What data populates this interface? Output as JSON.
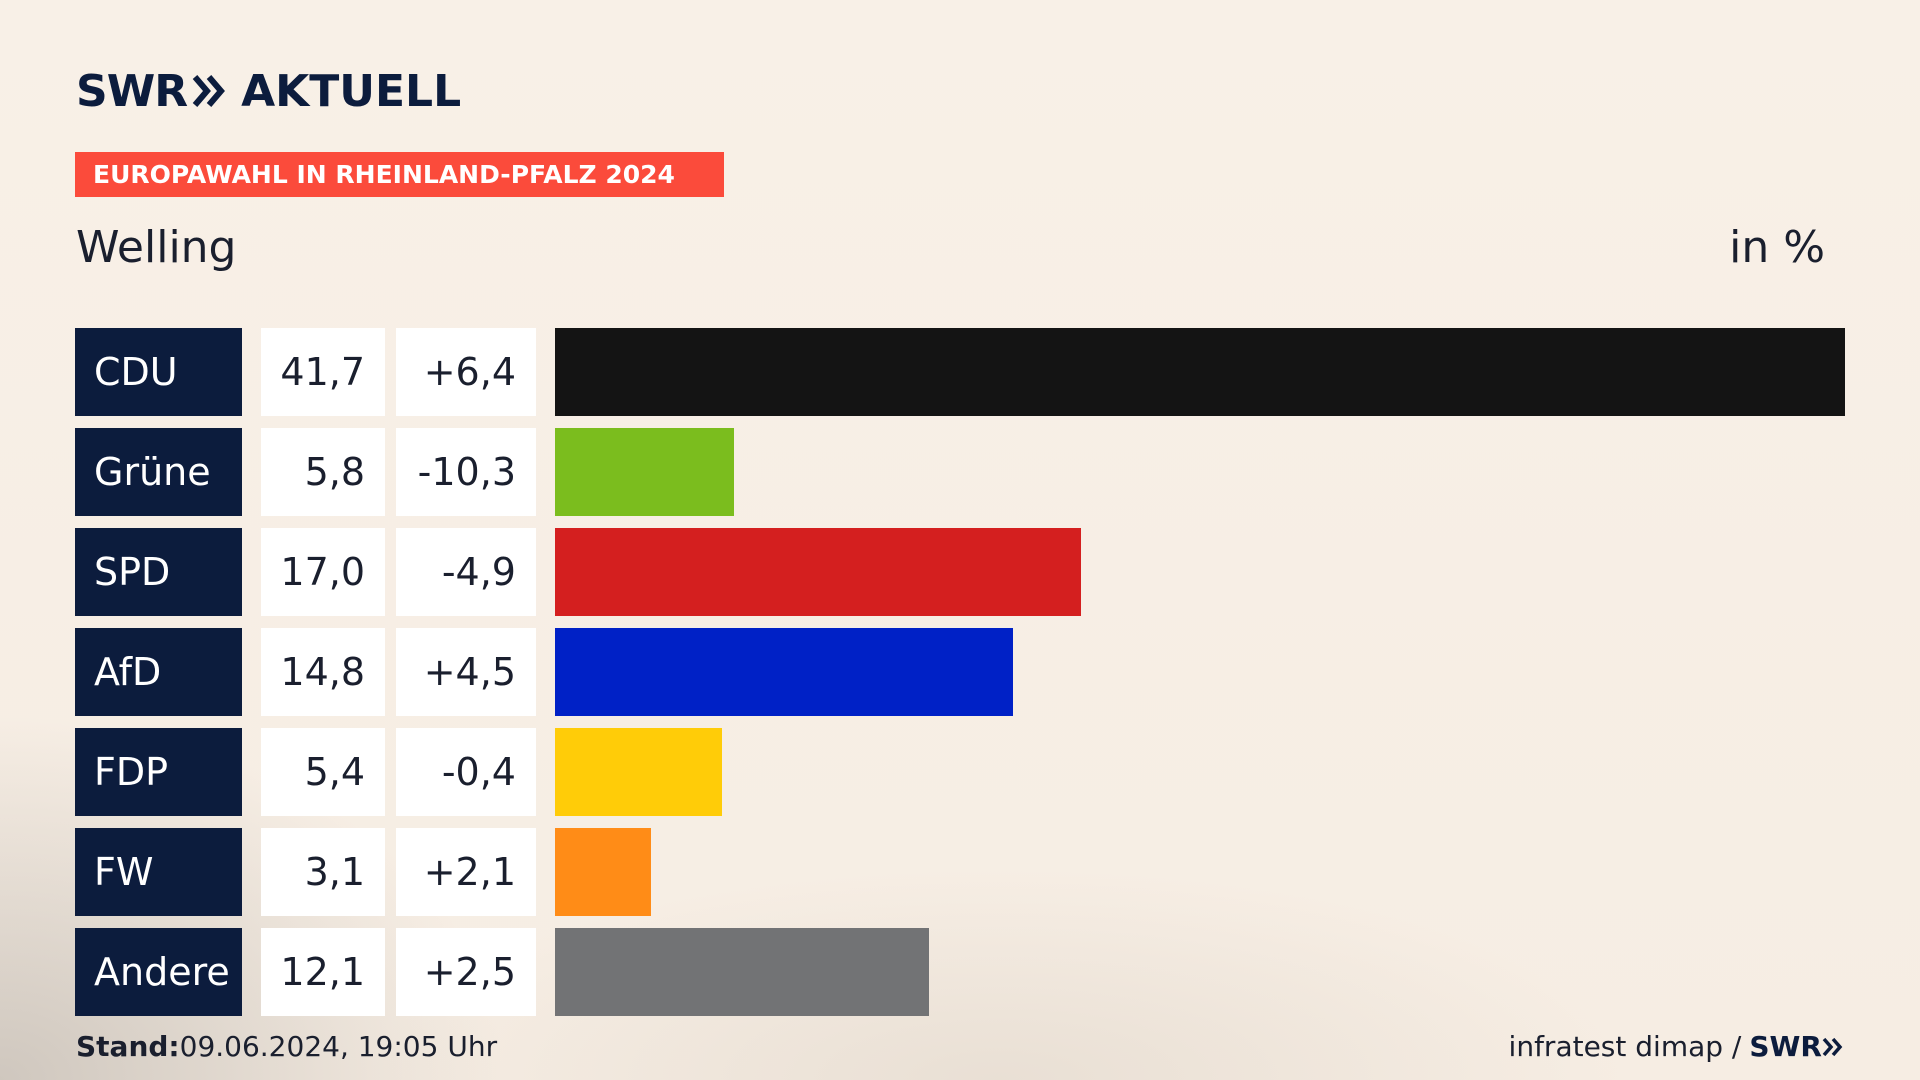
{
  "header": {
    "logo_swr": "SWR",
    "logo_aktuell": "AKTUELL",
    "banner": "EUROPAWAHL IN RHEINLAND-PFALZ 2024",
    "location": "Welling",
    "unit": "in %"
  },
  "rows": [
    {
      "party": "CDU",
      "value": "41,7",
      "diff": "+6,4"
    },
    {
      "party": "Grüne",
      "value": "5,8",
      "diff": "-10,3"
    },
    {
      "party": "SPD",
      "value": "17,0",
      "diff": "-4,9"
    },
    {
      "party": "AfD",
      "value": "14,8",
      "diff": "+4,5"
    },
    {
      "party": "FDP",
      "value": "5,4",
      "diff": "-0,4"
    },
    {
      "party": "FW",
      "value": "3,1",
      "diff": "+2,1"
    },
    {
      "party": "Andere",
      "value": "12,1",
      "diff": "+2,5"
    }
  ],
  "footer": {
    "stand_label": "Stand:",
    "stand_value": "09.06.2024, 19:05 Uhr",
    "source": "infratest dimap /",
    "source_brand": "SWR"
  },
  "chart_data": {
    "type": "bar",
    "orientation": "horizontal",
    "title": "Welling",
    "unit": "in %",
    "categories": [
      "CDU",
      "Grüne",
      "SPD",
      "AfD",
      "FDP",
      "FW",
      "Andere"
    ],
    "values": [
      41.7,
      5.8,
      17.0,
      14.8,
      5.4,
      3.1,
      12.1
    ],
    "changes": [
      6.4,
      -10.3,
      -4.9,
      4.5,
      -0.4,
      2.1,
      2.5
    ],
    "colors": [
      "#141414",
      "#7bbd1e",
      "#d41f1f",
      "#0021c6",
      "#ffcc08",
      "#ff8c17",
      "#727375"
    ],
    "xlim": [
      0,
      41.7
    ],
    "grid": false,
    "legend": "none"
  }
}
